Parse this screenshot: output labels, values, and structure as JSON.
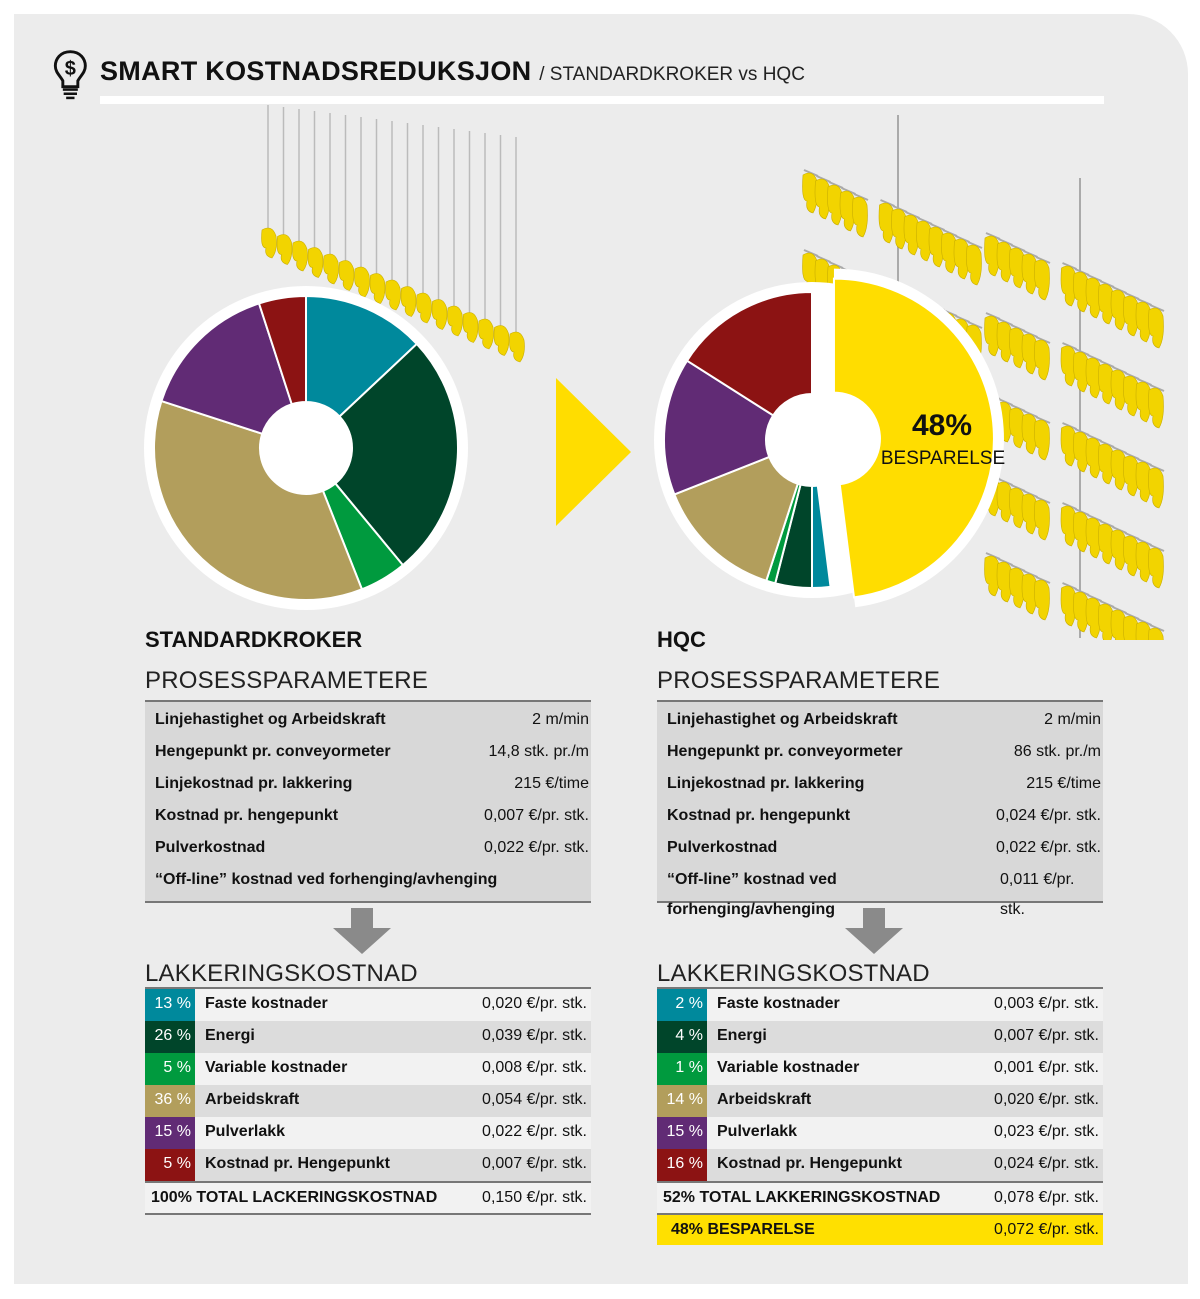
{
  "header": {
    "title": "SMART KOSTNADSREDUKSJON",
    "subtitle": "/ STANDARDKROKER vs HQC",
    "icon": "lightbulb-dollar-icon"
  },
  "colors": {
    "faste": "#00899c",
    "energi": "#00452a",
    "variable": "#009a3e",
    "arbeidskraft": "#b29e5c",
    "pulverlakk": "#612b75",
    "hengepunkt": "#8c1313",
    "besparelse": "#ffdd00",
    "hooks": "#f2d400"
  },
  "chart_data": [
    {
      "type": "pie",
      "title": "STANDARDKROKER",
      "categories": [
        "Faste kostnader",
        "Energi",
        "Variable kostnader",
        "Arbeidskraft",
        "Pulverlakk",
        "Kostnad pr. Hengepunkt"
      ],
      "values": [
        13,
        26,
        5,
        36,
        15,
        5
      ],
      "colors": [
        "#00899c",
        "#00452a",
        "#009a3e",
        "#b29e5c",
        "#612b75",
        "#8c1313"
      ],
      "donut": true
    },
    {
      "type": "pie",
      "title": "HQC",
      "categories": [
        "Besparelse",
        "Faste kostnader",
        "Energi",
        "Variable kostnader",
        "Arbeidskraft",
        "Pulverlakk",
        "Kostnad pr. Hengepunkt"
      ],
      "values": [
        48,
        2,
        4,
        1,
        14,
        15,
        16
      ],
      "colors": [
        "#ffdd00",
        "#00899c",
        "#00452a",
        "#009a3e",
        "#b29e5c",
        "#612b75",
        "#8c1313"
      ],
      "exploded": "Besparelse",
      "donut": true,
      "annotation": {
        "value": "48%",
        "label": "BESPARELSE"
      }
    }
  ],
  "left": {
    "title": "STANDARDKROKER",
    "params_heading": "PROSESSPARAMETERE",
    "params": [
      {
        "label": "Linjehastighet og Arbeidskraft",
        "value": "2 m/min"
      },
      {
        "label": "Hengepunkt pr. conveyormeter",
        "value": "14,8 stk. pr./m"
      },
      {
        "label": "Linjekostnad pr. lakkering",
        "value": "215 €/time"
      },
      {
        "label": "Kostnad pr. hengepunkt",
        "value": "0,007 €/pr. stk."
      },
      {
        "label": "Pulverkostnad",
        "value": "0,022 €/pr. stk."
      },
      {
        "label": "“Off-line” kostnad ved forhenging/avhenging",
        "value": ""
      }
    ],
    "cost_heading": "LAKKERINGSKOSTNAD",
    "costs": [
      {
        "pct": "13 %",
        "label": "Faste kostnader",
        "value": "0,020 €/pr. stk.",
        "color": "#00899c"
      },
      {
        "pct": "26 %",
        "label": "Energi",
        "value": "0,039 €/pr. stk.",
        "color": "#00452a"
      },
      {
        "pct": "5 %",
        "label": "Variable kostnader",
        "value": "0,008 €/pr. stk.",
        "color": "#009a3e"
      },
      {
        "pct": "36 %",
        "label": "Arbeidskraft",
        "value": "0,054 €/pr. stk.",
        "color": "#b29e5c"
      },
      {
        "pct": "15 %",
        "label": "Pulverlakk",
        "value": "0,022 €/pr. stk.",
        "color": "#612b75"
      },
      {
        "pct": "5 %",
        "label": "Kostnad pr. Hengepunkt",
        "value": "0,007 €/pr. stk.",
        "color": "#8c1313"
      }
    ],
    "total": {
      "label": "100% TOTAL LACKERINGSKOSTNAD",
      "value": "0,150 €/pr. stk."
    }
  },
  "right": {
    "title": "HQC",
    "params_heading": "PROSESSPARAMETERE",
    "params": [
      {
        "label": "Linjehastighet og Arbeidskraft",
        "value": "2 m/min"
      },
      {
        "label": "Hengepunkt pr. conveyormeter",
        "value": "86 stk. pr./m"
      },
      {
        "label": "Linjekostnad pr. lakkering",
        "value": "215 €/time"
      },
      {
        "label": "Kostnad pr. hengepunkt",
        "value": "0,024 €/pr. stk."
      },
      {
        "label": "Pulverkostnad",
        "value": "0,022 €/pr. stk."
      },
      {
        "label": "“Off-line” kostnad ved forhenging/avhenging",
        "value": "0,011 €/pr. stk."
      }
    ],
    "cost_heading": "LAKKERINGSKOSTNAD",
    "costs": [
      {
        "pct": "2 %",
        "label": "Faste kostnader",
        "value": "0,003 €/pr. stk.",
        "color": "#00899c"
      },
      {
        "pct": "4 %",
        "label": "Energi",
        "value": "0,007 €/pr. stk.",
        "color": "#00452a"
      },
      {
        "pct": "1 %",
        "label": "Variable kostnader",
        "value": "0,001 €/pr. stk.",
        "color": "#009a3e"
      },
      {
        "pct": "14 %",
        "label": "Arbeidskraft",
        "value": "0,020 €/pr. stk.",
        "color": "#b29e5c"
      },
      {
        "pct": "15 %",
        "label": "Pulverlakk",
        "value": "0,023 €/pr. stk.",
        "color": "#612b75"
      },
      {
        "pct": "16 %",
        "label": "Kostnad pr. Hengepunkt",
        "value": "0,024 €/pr. stk.",
        "color": "#8c1313"
      }
    ],
    "total": {
      "label": "52% TOTAL LAKKERINGSKOSTNAD",
      "value": "0,078 €/pr. stk."
    },
    "saving": {
      "label": "48% BESPARELSE",
      "value": "0,072 €/pr. stk."
    }
  }
}
